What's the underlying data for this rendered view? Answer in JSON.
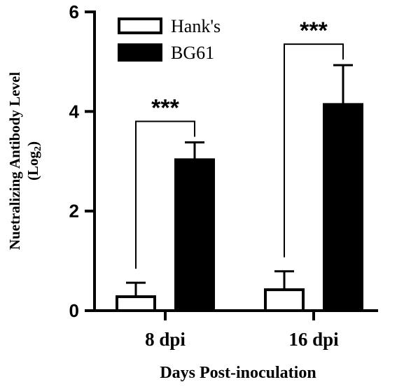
{
  "chart_data": {
    "type": "bar",
    "categories": [
      "8 dpi",
      "16 dpi"
    ],
    "series": [
      {
        "name": "Hank's",
        "values": [
          0.28,
          0.42
        ],
        "errors": [
          0.28,
          0.37
        ],
        "fill": "#ffffff",
        "stroke": "#000000"
      },
      {
        "name": "BG61",
        "values": [
          3.03,
          4.14
        ],
        "errors": [
          0.35,
          0.79
        ],
        "fill": "#000000",
        "stroke": "#000000"
      }
    ],
    "xlabel": "Days Post-inoculation",
    "ylabel_line1": "Nuetralizing Antibody Level",
    "ylabel_line2": "(Log",
    "ylabel_sub": "2",
    "ylabel_end": ")",
    "ylim": [
      0,
      6
    ],
    "yticks": [
      "0",
      "2",
      "4",
      "6"
    ],
    "significance": [
      {
        "label": "***",
        "category_index": 0
      },
      {
        "label": "***",
        "category_index": 1
      }
    ],
    "legend_position": "top-left",
    "grid": false
  }
}
